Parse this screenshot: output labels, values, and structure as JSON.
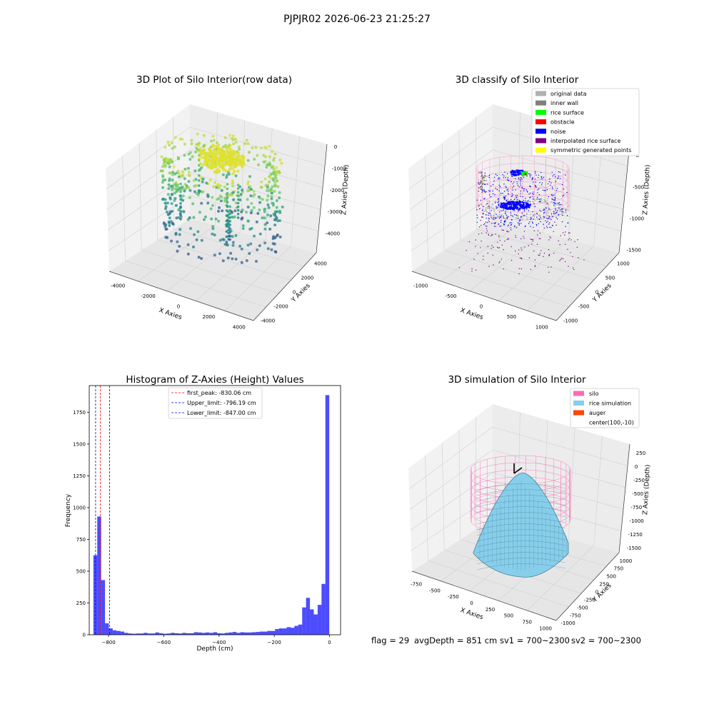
{
  "suptitle": "PJPJR02 2026-06-23 21:25:27",
  "colors": {
    "viridis": [
      "#440154",
      "#3b528b",
      "#21918c",
      "#5ec962",
      "#fde725"
    ],
    "gray": "#b0b0b0",
    "inner_wall": "#808080",
    "rice_surface": "#00ff00",
    "obstacle": "#ff0000",
    "noise": "#0000ff",
    "interp": "#800080",
    "symmetric": "#ffff00",
    "silo": "#ff69b4",
    "rice_sim": "#87ceeb",
    "auger": "#ff4500",
    "hist_bar": "#0000ff"
  },
  "panel_tl": {
    "title": "3D Plot of Silo Interior(row data)",
    "xlabel": "X Axies",
    "ylabel": "Y Axies",
    "zlabel": "Z Axies (Depth)",
    "x_ticks": [
      "-4000",
      "-2000",
      "0",
      "2000",
      "4000"
    ],
    "y_ticks": [
      "-4000",
      "-2000",
      "0",
      "2000",
      "4000"
    ],
    "z_ticks": [
      "0",
      "-1000",
      "-2000",
      "-3000",
      "-4000"
    ]
  },
  "panel_tr": {
    "title": "3D classify of Silo Interior",
    "xlabel": "X Axies",
    "ylabel": "Y Axies",
    "zlabel": "Z Axies (Depth)",
    "x_ticks": [
      "-1000",
      "-500",
      "0",
      "500",
      "1000"
    ],
    "y_ticks": [
      "-1000",
      "-500",
      "0",
      "500",
      "1000"
    ],
    "z_ticks": [
      "0",
      "-500",
      "-1000",
      "-1500"
    ],
    "legend": [
      {
        "label": "original data",
        "color": "#b0b0b0"
      },
      {
        "label": "inner wall",
        "color": "#808080"
      },
      {
        "label": "rice surface",
        "color": "#00ff00"
      },
      {
        "label": "obstacle",
        "color": "#ff0000"
      },
      {
        "label": "noise",
        "color": "#0000ff"
      },
      {
        "label": "interpolated rice surface",
        "color": "#800080"
      },
      {
        "label": "symmetric generated points",
        "color": "#ffff00"
      }
    ]
  },
  "panel_br": {
    "title": "3D simulation of Silo Interior",
    "xlabel": "X Axies",
    "ylabel": "Y Axies",
    "zlabel": "Z Axies (Depth)",
    "x_ticks": [
      "-750",
      "-500",
      "-250",
      "0",
      "250",
      "500",
      "750",
      "1000"
    ],
    "y_ticks": [
      "-1000",
      "-750",
      "-500",
      "-250",
      "0",
      "250",
      "500",
      "750",
      "1000"
    ],
    "z_ticks": [
      "250",
      "0",
      "-250",
      "-500",
      "-750",
      "-1000",
      "-1250",
      "-1500"
    ],
    "legend": [
      {
        "label": "silo",
        "color": "#ff69b4"
      },
      {
        "label": "rice simulation",
        "color": "#87ceeb"
      },
      {
        "label": "auger",
        "color": "#ff4500"
      },
      {
        "label": "center(100,-10)",
        "color": ""
      }
    ]
  },
  "footer": {
    "flag": "flag = 29",
    "avg_depth": "avgDepth = 851 cm",
    "sv1": "sv1 = 700~2300",
    "sv2": "sv2 = 700~2300"
  },
  "chart_data": [
    {
      "type": "scatter",
      "title": "3D Plot of Silo Interior(row data)",
      "xlabel": "X Axies",
      "ylabel": "Y Axies",
      "zlabel": "Z Axies (Depth)",
      "xlim": [
        -4500,
        4500
      ],
      "ylim": [
        -4500,
        4500
      ],
      "zlim": [
        -4500,
        0
      ],
      "grid": true
    },
    {
      "type": "scatter",
      "title": "3D classify of Silo Interior",
      "xlabel": "X Axies",
      "ylabel": "Y Axies",
      "zlabel": "Z Axies (Depth)",
      "xlim": [
        -1100,
        1100
      ],
      "ylim": [
        -1100,
        1100
      ],
      "zlim": [
        -1800,
        0
      ],
      "series": [
        {
          "name": "original data"
        },
        {
          "name": "inner wall"
        },
        {
          "name": "rice surface"
        },
        {
          "name": "obstacle"
        },
        {
          "name": "noise"
        },
        {
          "name": "interpolated rice surface"
        },
        {
          "name": "symmetric generated points"
        }
      ],
      "legend": "top-right",
      "grid": true
    },
    {
      "type": "bar",
      "title": "Histogram of Z-Axies (Height) Values",
      "xlabel": "Depth (cm)",
      "ylabel": "Frequency",
      "xlim": [
        -870,
        40
      ],
      "ylim": [
        0,
        1960
      ],
      "x_ticks": [
        -800,
        -600,
        -400,
        -200,
        0
      ],
      "y_ticks": [
        0,
        250,
        500,
        750,
        1000,
        1250,
        1500,
        1750
      ],
      "bin_width": 14,
      "bin_starts": [
        -855,
        -841,
        -827,
        -813,
        -799,
        -785,
        -771,
        -757,
        -743,
        -729,
        -715,
        -701,
        -687,
        -673,
        -659,
        -645,
        -631,
        -617,
        -603,
        -589,
        -575,
        -561,
        -547,
        -533,
        -519,
        -505,
        -491,
        -477,
        -463,
        -449,
        -435,
        -421,
        -407,
        -393,
        -379,
        -365,
        -351,
        -337,
        -323,
        -309,
        -295,
        -281,
        -267,
        -253,
        -239,
        -225,
        -211,
        -197,
        -183,
        -169,
        -155,
        -141,
        -127,
        -113,
        -99,
        -85,
        -71,
        -57,
        -43,
        -29,
        -15,
        -1
      ],
      "values": [
        625,
        930,
        430,
        90,
        50,
        35,
        30,
        25,
        15,
        10,
        8,
        10,
        10,
        15,
        10,
        10,
        18,
        12,
        8,
        10,
        15,
        12,
        10,
        15,
        12,
        12,
        20,
        18,
        15,
        18,
        15,
        20,
        12,
        10,
        15,
        18,
        22,
        15,
        20,
        18,
        18,
        20,
        22,
        25,
        25,
        30,
        30,
        45,
        50,
        50,
        60,
        55,
        70,
        80,
        215,
        290,
        200,
        160,
        235,
        400,
        1885,
        0
      ],
      "lines": [
        {
          "label": "first_peak: -830.06 cm",
          "x": -830.06,
          "color": "#ff0000"
        },
        {
          "label": "Upper_limit: -796.19 cm",
          "x": -796.19,
          "color": "#0000ff"
        },
        {
          "label": "Lower_limit: -847.00 cm",
          "x": -847.0,
          "color": "#0000ff"
        }
      ],
      "legend": "top-center"
    },
    {
      "type": "area",
      "title": "3D simulation of Silo Interior",
      "xlabel": "X Axies",
      "ylabel": "Y Axies",
      "zlabel": "Z Axies (Depth)",
      "xlim": [
        -900,
        1100
      ],
      "ylim": [
        -1100,
        1100
      ],
      "zlim": [
        -1600,
        350
      ],
      "series": [
        {
          "name": "silo"
        },
        {
          "name": "rice simulation"
        },
        {
          "name": "auger"
        }
      ],
      "center": [
        100,
        -10
      ],
      "legend": "top-right",
      "grid": true
    }
  ]
}
